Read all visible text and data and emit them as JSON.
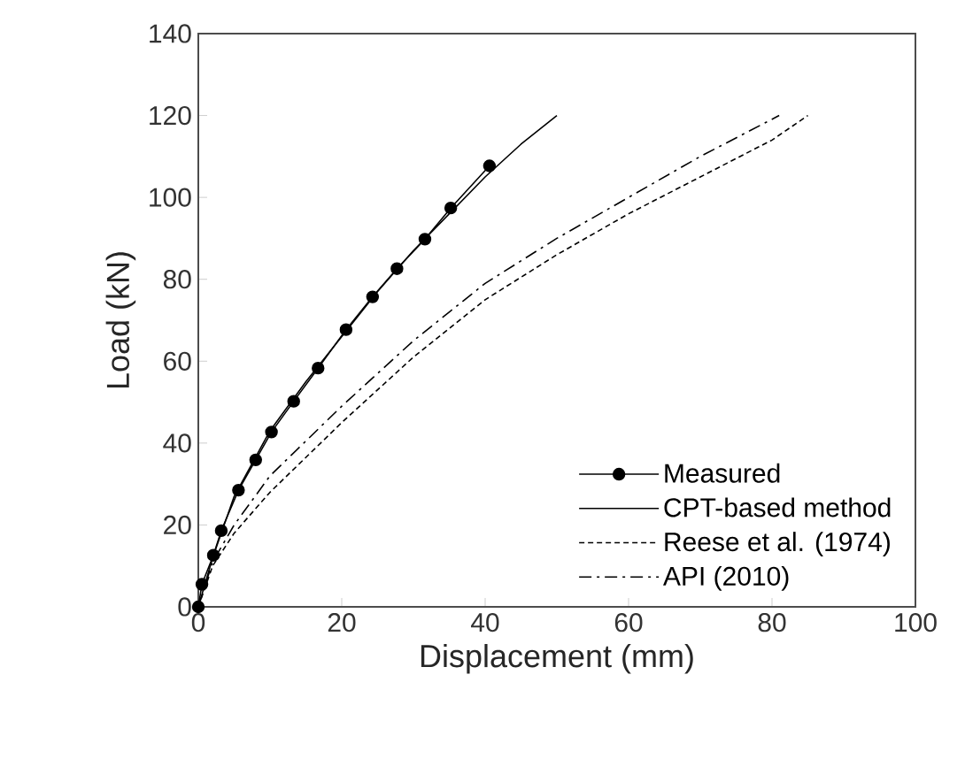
{
  "chart_data": {
    "type": "line",
    "xlabel": "Displacement  (mm)",
    "ylabel": "Load (kN)",
    "xlim": [
      0,
      100
    ],
    "xticks": [
      0,
      20,
      40,
      60,
      80,
      100
    ],
    "ylim": [
      0,
      140
    ],
    "yticks": [
      0,
      20,
      40,
      60,
      80,
      100,
      120,
      140
    ],
    "grid": false,
    "legend": "bottom right",
    "series": [
      {
        "name": "Measured",
        "color": "#000000",
        "marker": "circle",
        "line_style": "solid",
        "x": [
          0,
          0.5,
          2.1,
          3.2,
          5.6,
          8.0,
          10.2,
          13.3,
          16.7,
          20.6,
          24.3,
          27.7,
          31.6,
          35.2,
          40.6
        ],
        "values": [
          0,
          5.5,
          12.6,
          18.6,
          28.5,
          35.9,
          42.7,
          50.2,
          58.3,
          67.7,
          75.7,
          82.6,
          89.8,
          97.4,
          107.7
        ]
      },
      {
        "name": "CPT-based method",
        "color": "#000000",
        "marker": "none",
        "line_style": "solid",
        "x": [
          0,
          2,
          5,
          10,
          15,
          20,
          25,
          30,
          35,
          40,
          45,
          50
        ],
        "values": [
          0,
          12,
          27,
          43,
          55,
          66,
          77,
          87,
          96,
          105,
          113,
          120
        ]
      },
      {
        "name": "Reese et al. (1974)",
        "color": "#000000",
        "marker": "none",
        "line_style": "dashed",
        "x": [
          0,
          2,
          5,
          10,
          20,
          30,
          40,
          50,
          60,
          70,
          80,
          85
        ],
        "values": [
          0,
          10,
          18,
          28,
          45,
          61,
          75,
          86,
          96,
          105,
          114,
          120
        ]
      },
      {
        "name": "API (2010)",
        "color": "#000000",
        "marker": "none",
        "line_style": "dashdot",
        "x": [
          0,
          2,
          5,
          10,
          20,
          30,
          40,
          50,
          60,
          70,
          81
        ],
        "values": [
          0,
          11,
          20,
          32,
          49,
          65,
          79,
          90,
          100,
          110,
          120
        ]
      }
    ]
  }
}
